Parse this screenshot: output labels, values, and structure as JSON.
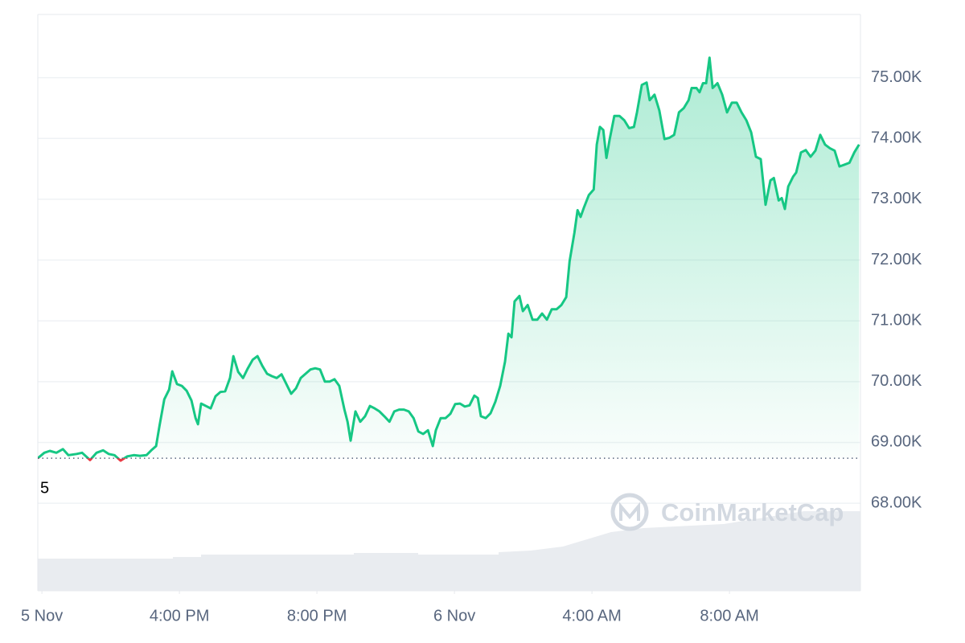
{
  "chart_data": {
    "type": "line",
    "x": [
      11.88,
      12.07,
      12.23,
      12.42,
      12.61,
      12.77,
      13.01,
      13.17,
      13.4,
      13.59,
      13.78,
      13.94,
      14.11,
      14.29,
      14.48,
      14.67,
      14.85,
      15.04,
      15.18,
      15.32,
      15.42,
      15.56,
      15.7,
      15.79,
      15.93,
      16.07,
      16.21,
      16.35,
      16.47,
      16.54,
      16.63,
      16.77,
      16.91,
      17.05,
      17.19,
      17.33,
      17.47,
      17.57,
      17.71,
      17.85,
      17.99,
      18.13,
      18.27,
      18.41,
      18.55,
      18.69,
      18.83,
      18.97,
      19.11,
      19.25,
      19.39,
      19.53,
      19.67,
      19.81,
      19.95,
      20.09,
      20.23,
      20.37,
      20.51,
      20.65,
      20.8,
      20.89,
      20.98,
      21.12,
      21.26,
      21.4,
      21.54,
      21.68,
      21.82,
      21.96,
      22.11,
      22.25,
      22.39,
      22.53,
      22.67,
      22.81,
      22.95,
      23.09,
      23.23,
      23.37,
      23.46,
      23.6,
      23.74,
      23.88,
      24.02,
      24.16,
      24.3,
      24.44,
      24.58,
      24.68,
      24.77,
      24.91,
      25.05,
      25.19,
      25.33,
      25.47,
      25.57,
      25.66,
      25.75,
      25.89,
      25.99,
      26.13,
      26.27,
      26.41,
      26.55,
      26.69,
      26.83,
      26.97,
      27.11,
      27.25,
      27.35,
      27.49,
      27.58,
      27.67,
      27.77,
      27.91,
      28.05,
      28.14,
      28.23,
      28.33,
      28.42,
      28.51,
      28.65,
      28.8,
      28.94,
      29.08,
      29.22,
      29.31,
      29.45,
      29.59,
      29.68,
      29.82,
      29.96,
      30.11,
      30.25,
      30.39,
      30.53,
      30.67,
      30.81,
      30.9,
      31.04,
      31.13,
      31.23,
      31.32,
      31.42,
      31.51,
      31.65,
      31.79,
      31.93,
      32.07,
      32.21,
      32.35,
      32.49,
      32.63,
      32.77,
      32.91,
      33.05,
      33.19,
      33.29,
      33.43,
      33.52,
      33.61,
      33.71,
      33.85,
      33.94,
      34.08,
      34.22,
      34.36,
      34.5,
      34.64,
      34.78,
      34.92,
      35.06,
      35.2,
      35.35,
      35.49,
      35.63,
      35.77
    ],
    "series": [
      {
        "color": "#16c784",
        "color_below": "#ea3943",
        "values": [
          68740,
          68830,
          68860,
          68830,
          68890,
          68790,
          68810,
          68830,
          68710,
          68830,
          68870,
          68810,
          68790,
          68700,
          68770,
          68790,
          68780,
          68790,
          68870,
          68940,
          69270,
          69710,
          69870,
          70170,
          69960,
          69930,
          69850,
          69690,
          69400,
          69300,
          69640,
          69600,
          69560,
          69760,
          69830,
          69840,
          70060,
          70420,
          70160,
          70060,
          70220,
          70360,
          70420,
          70260,
          70130,
          70090,
          70060,
          70120,
          69960,
          69800,
          69890,
          70060,
          70130,
          70200,
          70220,
          70200,
          70000,
          70000,
          70040,
          69930,
          69540,
          69340,
          69030,
          69510,
          69340,
          69430,
          69600,
          69560,
          69510,
          69430,
          69340,
          69510,
          69540,
          69540,
          69510,
          69400,
          69180,
          69140,
          69200,
          68940,
          69200,
          69400,
          69400,
          69470,
          69630,
          69640,
          69590,
          69610,
          69770,
          69730,
          69430,
          69400,
          69480,
          69670,
          69930,
          70330,
          70790,
          70730,
          71320,
          71410,
          71160,
          71260,
          71020,
          71020,
          71120,
          71020,
          71190,
          71190,
          71260,
          71390,
          71980,
          72450,
          72820,
          72710,
          72870,
          73070,
          73160,
          73900,
          74190,
          74140,
          73680,
          73970,
          74370,
          74370,
          74300,
          74170,
          74190,
          74430,
          74880,
          74920,
          74630,
          74720,
          74460,
          73990,
          74010,
          74060,
          74430,
          74500,
          74630,
          74830,
          74830,
          74760,
          74910,
          74910,
          75330,
          74830,
          74910,
          74720,
          74430,
          74590,
          74590,
          74430,
          74300,
          74100,
          73700,
          73660,
          72910,
          73310,
          73350,
          72980,
          73020,
          72840,
          73210,
          73370,
          73440,
          73770,
          73810,
          73700,
          73800,
          74060,
          73900,
          73840,
          73800,
          73540,
          73570,
          73600,
          73770,
          73900
        ]
      }
    ],
    "baseline": 68740,
    "baseline_label": "5",
    "xlim": [
      11.88,
      35.81
    ],
    "xticks": [
      {
        "value": 12,
        "label": "5 Nov"
      },
      {
        "value": 16,
        "label": "4:00 PM"
      },
      {
        "value": 20,
        "label": "8:00 PM"
      },
      {
        "value": 24,
        "label": "6 Nov"
      },
      {
        "value": 28,
        "label": "4:00 AM"
      },
      {
        "value": 32,
        "label": "8:00 AM"
      }
    ],
    "ylim": [
      66560,
      76040
    ],
    "yticks": [
      {
        "value": 68000,
        "label": "68.00K"
      },
      {
        "value": 69000,
        "label": "69.00K"
      },
      {
        "value": 70000,
        "label": "70.00K"
      },
      {
        "value": 71000,
        "label": "71.00K"
      },
      {
        "value": 72000,
        "label": "72.00K"
      },
      {
        "value": 73000,
        "label": "73.00K"
      },
      {
        "value": 74000,
        "label": "74.00K"
      },
      {
        "value": 75000,
        "label": "75.00K"
      }
    ],
    "grid": true,
    "watermark": "CoinMarketCap"
  }
}
